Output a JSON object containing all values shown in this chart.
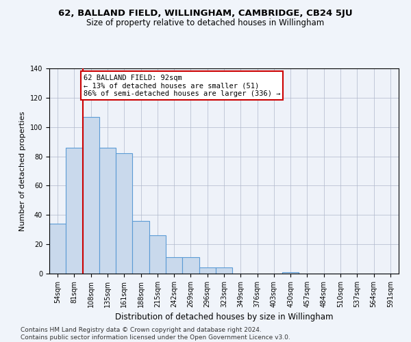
{
  "title1": "62, BALLAND FIELD, WILLINGHAM, CAMBRIDGE, CB24 5JU",
  "title2": "Size of property relative to detached houses in Willingham",
  "xlabel": "Distribution of detached houses by size in Willingham",
  "ylabel": "Number of detached properties",
  "bar_labels": [
    "54sqm",
    "81sqm",
    "108sqm",
    "135sqm",
    "161sqm",
    "188sqm",
    "215sqm",
    "242sqm",
    "269sqm",
    "296sqm",
    "323sqm",
    "349sqm",
    "376sqm",
    "403sqm",
    "430sqm",
    "457sqm",
    "484sqm",
    "510sqm",
    "537sqm",
    "564sqm",
    "591sqm"
  ],
  "bar_values": [
    34,
    86,
    107,
    86,
    82,
    36,
    26,
    11,
    11,
    4,
    4,
    0,
    0,
    0,
    1,
    0,
    0,
    0,
    0,
    0,
    0
  ],
  "bar_color": "#c9d9ec",
  "bar_edge_color": "#5b9bd5",
  "annotation_text": "62 BALLAND FIELD: 92sqm\n← 13% of detached houses are smaller (51)\n86% of semi-detached houses are larger (336) →",
  "annotation_box_color": "#ffffff",
  "annotation_box_edge": "#cc0000",
  "vline_color": "#cc0000",
  "vline_x": 1.5,
  "ylim": [
    0,
    140
  ],
  "yticks": [
    0,
    20,
    40,
    60,
    80,
    100,
    120,
    140
  ],
  "footer": "Contains HM Land Registry data © Crown copyright and database right 2024.\nContains public sector information licensed under the Open Government Licence v3.0.",
  "bg_color": "#f0f4fa",
  "plot_bg_color": "#eef2f9",
  "title1_fontsize": 9.5,
  "title2_fontsize": 8.5,
  "ylabel_fontsize": 8,
  "xlabel_fontsize": 8.5,
  "tick_fontsize": 7,
  "annotation_fontsize": 7.5,
  "footer_fontsize": 6.5
}
